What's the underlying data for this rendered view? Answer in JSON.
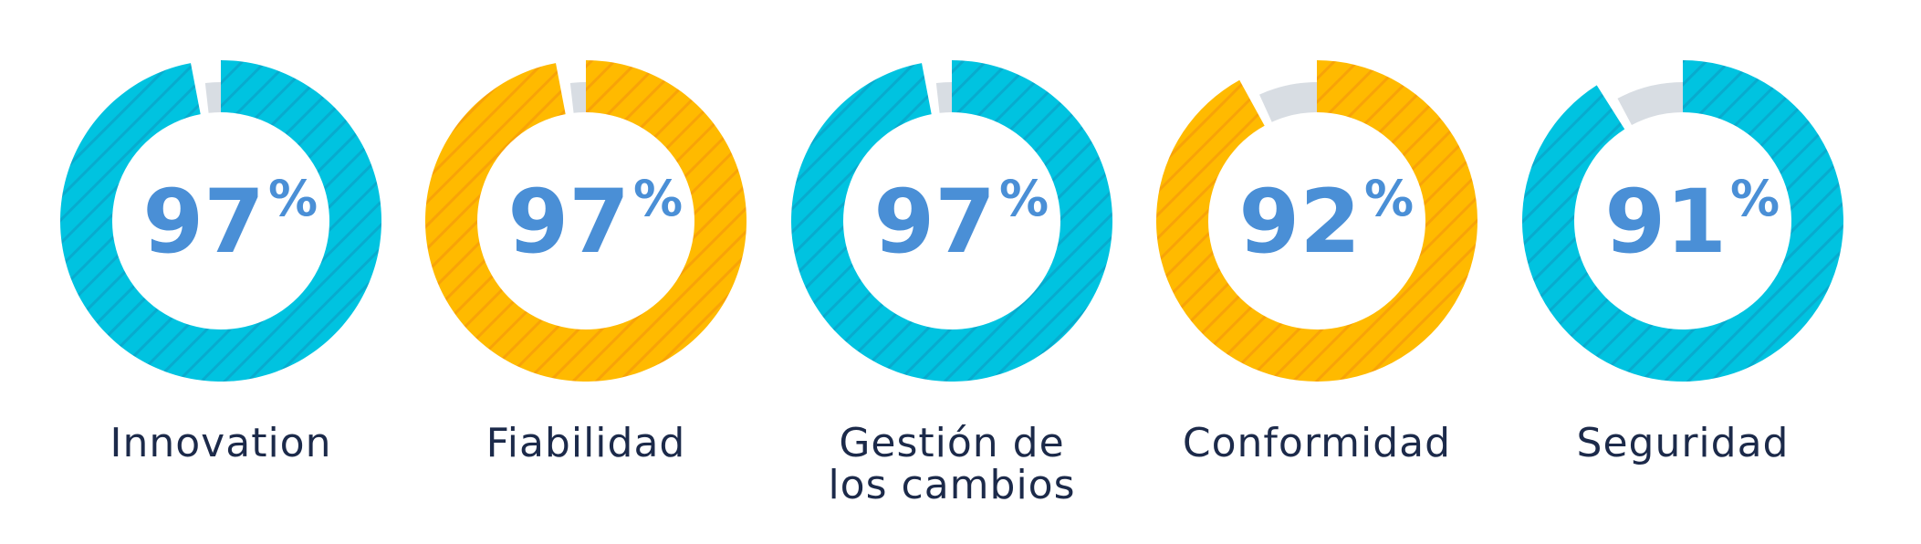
{
  "chart_data": {
    "type": "pie",
    "variant": "donut",
    "unit_symbol": "%",
    "remainder_color": "#d8dde3",
    "hatch": true,
    "series": [
      {
        "name": "Innovation",
        "label_lines": [
          "Innovation"
        ],
        "value": 97,
        "color": "#00c3e0",
        "hatch_color": "#0aa3c8"
      },
      {
        "name": "Fiabilidad",
        "label_lines": [
          "Fiabilidad"
        ],
        "value": 97,
        "color": "#ffba00",
        "hatch_color": "#f59a0a"
      },
      {
        "name": "Gestión de los cambios",
        "label_lines": [
          "Gestión de",
          "los cambios"
        ],
        "value": 97,
        "color": "#00c3e0",
        "hatch_color": "#0aa3c8"
      },
      {
        "name": "Conformidad",
        "label_lines": [
          "Conformidad"
        ],
        "value": 92,
        "color": "#ffba00",
        "hatch_color": "#f59a0a"
      },
      {
        "name": "Seguridad",
        "label_lines": [
          "Seguridad"
        ],
        "value": 91,
        "color": "#00c3e0",
        "hatch_color": "#0aa3c8"
      }
    ]
  }
}
